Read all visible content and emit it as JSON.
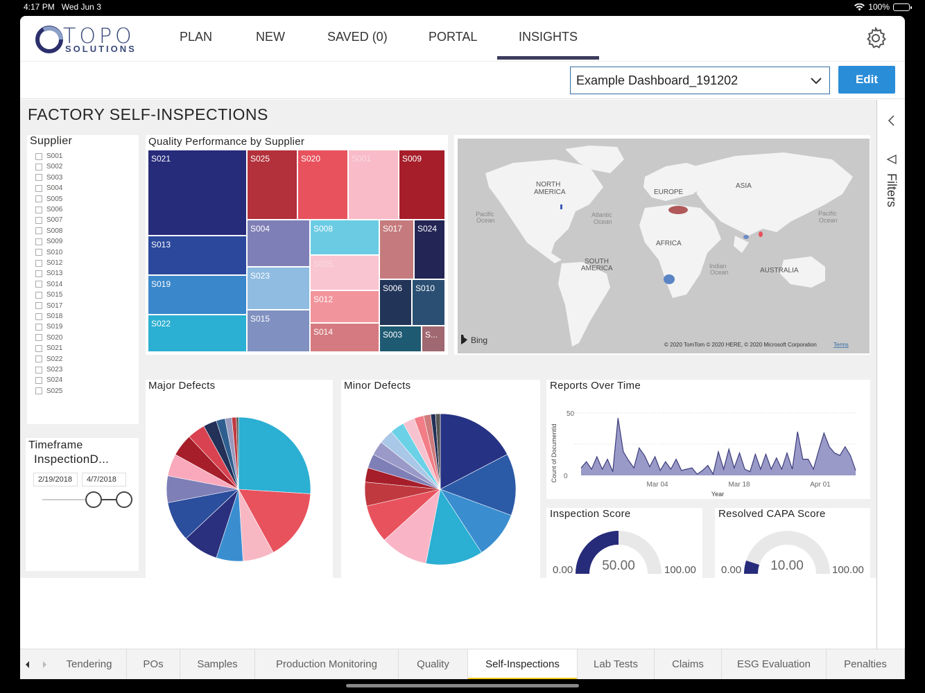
{
  "status": {
    "time": "4:17 PM",
    "date": "Wed Jun 3",
    "battery": "100%"
  },
  "logo": {
    "word1": "TOPO",
    "word2": "SOLUTIONS"
  },
  "nav": {
    "items": [
      "PLAN",
      "NEW",
      "SAVED (0)",
      "PORTAL",
      "INSIGHTS"
    ],
    "active": "INSIGHTS"
  },
  "dashboard": {
    "selected": "Example Dashboard_191202",
    "edit_label": "Edit"
  },
  "page": {
    "title": "FACTORY SELF-INSPECTIONS"
  },
  "filters": {
    "label": "Filters"
  },
  "supplier_slicer": {
    "title": "Supplier",
    "items": [
      "S001",
      "S002",
      "S003",
      "S004",
      "S005",
      "S006",
      "S007",
      "S008",
      "S009",
      "S010",
      "S012",
      "S013",
      "S014",
      "S015",
      "S017",
      "S018",
      "S019",
      "S020",
      "S021",
      "S022",
      "S023",
      "S024",
      "S025"
    ]
  },
  "timeframe": {
    "title": "Timeframe",
    "field": "InspectionD...",
    "start": "2/19/2018",
    "end": "4/7/2018"
  },
  "treemap": {
    "title": "Quality Performance by Supplier",
    "labels": {
      "S021": "S021",
      "S013": "S013",
      "S019": "S019",
      "S022": "S022",
      "S025": "S025",
      "S020": "S020",
      "S001": "S001",
      "S009": "S009",
      "S004": "S004",
      "S008": "S008",
      "S017": "S017",
      "S024": "S024",
      "S023": "S023",
      "S005": "S005",
      "S012": "S012",
      "S006": "S006",
      "S010": "S010",
      "S015": "S015",
      "S014": "S014",
      "S003": "S003",
      "SX": "S..."
    }
  },
  "map": {
    "labels": {
      "north_america_1": "NORTH",
      "north_america_2": "AMERICA",
      "europe": "EUROPE",
      "asia": "ASIA",
      "africa": "AFRICA",
      "south_america_1": "SOUTH",
      "south_america_2": "AMERICA",
      "australia": "AUSTRALIA",
      "pacific_w_1": "Pacific",
      "pacific_w_2": "Ocean",
      "pacific_e_1": "Pacific",
      "pacific_e_2": "Ocean",
      "atlantic_1": "Atlantic",
      "atlantic_2": "Ocean",
      "indian_1": "Indian",
      "indian_2": "Ocean"
    },
    "bing": "Bing",
    "copyright": "© 2020 TomTom © 2020 HERE, © 2020 Microsoft Corporation",
    "terms": "Terms"
  },
  "major_defects": {
    "title": "Major Defects"
  },
  "minor_defects": {
    "title": "Minor Defects"
  },
  "reports": {
    "title": "Reports Over Time",
    "ylabel": "Count of DocumentId",
    "xlabel": "Year",
    "yticks": [
      "50",
      "0"
    ],
    "xticks": [
      "Mar 04",
      "Mar 18",
      "Apr 01"
    ]
  },
  "inspection_score": {
    "title": "Inspection Score",
    "min": "0.00",
    "max": "100.00",
    "value": "50.00"
  },
  "capa_score": {
    "title": "Resolved CAPA Score",
    "min": "0.00",
    "max": "100.00",
    "value": "10.00"
  },
  "tabs": {
    "items": [
      "Tendering",
      "POs",
      "Samples",
      "Production Monitoring",
      "Quality",
      "Self-Inspections",
      "Lab Tests",
      "Claims",
      "ESG Evaluation",
      "Penalties"
    ],
    "active": "Self-Inspections"
  },
  "chart_data": [
    {
      "type": "pie",
      "title": "Major Defects",
      "values": [
        26,
        16,
        7,
        6,
        8,
        9,
        6,
        5,
        5,
        4,
        3,
        2,
        1.5,
        1,
        0.5
      ],
      "colors": [
        "#2bafd2",
        "#e8525d",
        "#f7b8c4",
        "#3a8ed0",
        "#2a2f7e",
        "#2b4e9d",
        "#7f7fb7",
        "#f9a9bb",
        "#a51e2a",
        "#d94250",
        "#233158",
        "#2f5f8f",
        "#9a9abf",
        "#c0393f",
        "#555"
      ]
    },
    {
      "type": "pie",
      "title": "Minor Defects",
      "values": [
        17,
        13,
        10,
        12,
        10,
        8,
        5,
        3,
        3,
        3,
        3,
        3,
        2.5,
        2,
        1.5,
        1,
        1
      ],
      "colors": [
        "#263283",
        "#2b5aa7",
        "#3a8ed0",
        "#2bafd2",
        "#f9b5c6",
        "#e8525d",
        "#c0393f",
        "#a51e2a",
        "#7f7fb7",
        "#9a9ac8",
        "#a9c7e6",
        "#6bd1e6",
        "#f7c2cf",
        "#f27d86",
        "#d07b7d",
        "#233158",
        "#555"
      ]
    },
    {
      "type": "area",
      "title": "Reports Over Time",
      "xlabel": "Year",
      "ylabel": "Count of DocumentId",
      "ylim": [
        0,
        50
      ],
      "y": [
        6,
        11,
        5,
        15,
        5,
        13,
        3,
        46,
        19,
        12,
        6,
        22,
        16,
        7,
        15,
        4,
        11,
        5,
        13,
        4,
        5,
        6,
        1,
        4,
        8,
        1,
        19,
        5,
        21,
        6,
        18,
        5,
        3,
        17,
        5,
        17,
        5,
        14,
        5,
        18,
        5,
        35,
        13,
        13,
        5,
        20,
        34,
        23,
        18,
        16,
        23,
        16,
        4
      ]
    },
    {
      "type": "gauge",
      "title": "Inspection Score",
      "min": 0,
      "max": 100,
      "value": 50
    },
    {
      "type": "gauge",
      "title": "Resolved CAPA Score",
      "min": 0,
      "max": 100,
      "value": 10
    }
  ]
}
